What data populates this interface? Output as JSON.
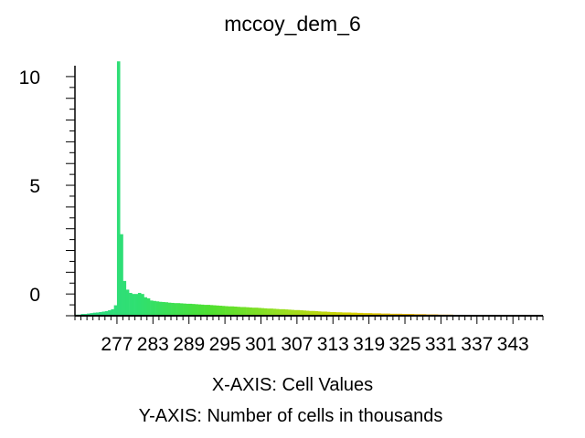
{
  "chart_data": {
    "type": "bar",
    "title": "mccoy_dem_6",
    "xlabel": "X-AXIS: Cell Values",
    "ylabel": "Y-AXIS: Number of cells in thousands",
    "y_tick_labels": [
      "0",
      "5",
      "10"
    ],
    "x_tick_labels": [
      "277",
      "283",
      "289",
      "295",
      "301",
      "307",
      "313",
      "319",
      "325",
      "331",
      "337",
      "343"
    ],
    "xlim": [
      270.0,
      348.0
    ],
    "ylim": [
      -1.0,
      10.5
    ],
    "grid": false,
    "legend": "none",
    "color_ramp": [
      "#2fd98a",
      "#2fe070",
      "#4ee030",
      "#9adf20",
      "#d8d000",
      "#e2a600",
      "#dc8a18",
      "#cf7f3a"
    ],
    "x": [
      270.0,
      270.5,
      271.0,
      271.5,
      272.0,
      272.5,
      273.0,
      273.5,
      274.0,
      274.5,
      275.0,
      275.5,
      276.0,
      276.5,
      277.0,
      277.5,
      278.0,
      278.5,
      279.0,
      279.5,
      280.0,
      280.5,
      281.0,
      281.5,
      282.0,
      282.5,
      283.0,
      283.5,
      284.0,
      284.5,
      285.0,
      285.5,
      286.0,
      286.5,
      287.0,
      287.5,
      288.0,
      288.5,
      289.0,
      289.5,
      290.0,
      290.5,
      291.0,
      291.5,
      292.0,
      292.5,
      293.0,
      293.5,
      294.0,
      294.5,
      295.0,
      295.5,
      296.0,
      296.5,
      297.0,
      297.5,
      298.0,
      298.5,
      299.0,
      299.5,
      300.0,
      300.5,
      301.0,
      301.5,
      302.0,
      302.5,
      303.0,
      303.5,
      304.0,
      304.5,
      305.0,
      305.5,
      306.0,
      306.5,
      307.0,
      307.5,
      308.0,
      308.5,
      309.0,
      309.5,
      310.0,
      310.5,
      311.0,
      311.5,
      312.0,
      312.5,
      313.0,
      313.5,
      314.0,
      314.5,
      315.0,
      315.5,
      316.0,
      316.5,
      317.0,
      317.5,
      318.0,
      318.5,
      319.0,
      319.5,
      320.0,
      320.5,
      321.0,
      321.5,
      322.0,
      322.5,
      323.0,
      323.5,
      324.0,
      324.5,
      325.0,
      325.5,
      326.0,
      326.5,
      327.0,
      327.5,
      328.0,
      328.5,
      329.0,
      329.5,
      330.0,
      330.5,
      331.0,
      331.5,
      332.0,
      332.5,
      333.0,
      333.5,
      334.0,
      334.5,
      335.0,
      335.5,
      336.0,
      336.5,
      337.0,
      337.5,
      338.0,
      338.5,
      339.0,
      339.5,
      340.0,
      340.5,
      341.0,
      341.5,
      342.0,
      342.5,
      343.0,
      343.5,
      344.0,
      344.5,
      345.0,
      345.5,
      346.0,
      346.5,
      347.0,
      347.5
    ],
    "values": [
      -0.95,
      -0.95,
      -0.92,
      -0.92,
      -0.9,
      -0.88,
      -0.86,
      -0.85,
      -0.83,
      -0.81,
      -0.79,
      -0.75,
      -0.7,
      -0.52,
      10.7,
      2.75,
      0.6,
      0.2,
      0.05,
      0.0,
      0.0,
      0.05,
      0.0,
      -0.15,
      -0.2,
      -0.3,
      -0.32,
      -0.34,
      -0.36,
      -0.37,
      -0.38,
      -0.4,
      -0.41,
      -0.42,
      -0.42,
      -0.43,
      -0.44,
      -0.45,
      -0.45,
      -0.46,
      -0.47,
      -0.48,
      -0.49,
      -0.5,
      -0.5,
      -0.51,
      -0.52,
      -0.53,
      -0.54,
      -0.55,
      -0.56,
      -0.57,
      -0.57,
      -0.58,
      -0.59,
      -0.6,
      -0.6,
      -0.61,
      -0.62,
      -0.63,
      -0.63,
      -0.64,
      -0.65,
      -0.66,
      -0.67,
      -0.67,
      -0.68,
      -0.69,
      -0.7,
      -0.7,
      -0.71,
      -0.72,
      -0.73,
      -0.74,
      -0.74,
      -0.75,
      -0.76,
      -0.77,
      -0.78,
      -0.78,
      -0.79,
      -0.8,
      -0.81,
      -0.81,
      -0.82,
      -0.83,
      -0.83,
      -0.84,
      -0.84,
      -0.85,
      -0.85,
      -0.85,
      -0.86,
      -0.86,
      -0.87,
      -0.87,
      -0.88,
      -0.88,
      -0.88,
      -0.89,
      -0.89,
      -0.89,
      -0.9,
      -0.9,
      -0.9,
      -0.91,
      -0.91,
      -0.91,
      -0.91,
      -0.92,
      -0.92,
      -0.92,
      -0.92,
      -0.93,
      -0.93,
      -0.93,
      -0.93,
      -0.94,
      -0.94,
      -0.94,
      -0.94,
      -0.95,
      -0.95,
      -0.95,
      -0.95,
      -0.95,
      -0.96,
      -0.96,
      -0.96,
      -0.96,
      -0.96,
      -0.97,
      -0.97,
      -0.97,
      -0.97,
      -0.97,
      -0.97,
      -0.98,
      -0.98,
      -0.98,
      -0.98,
      -0.98,
      -0.98,
      -0.98,
      -0.99,
      -0.99,
      -0.99,
      -0.99,
      -0.99,
      -0.99,
      -0.99,
      -0.99,
      -0.99,
      -1.0,
      -1.0,
      -1.0
    ]
  }
}
